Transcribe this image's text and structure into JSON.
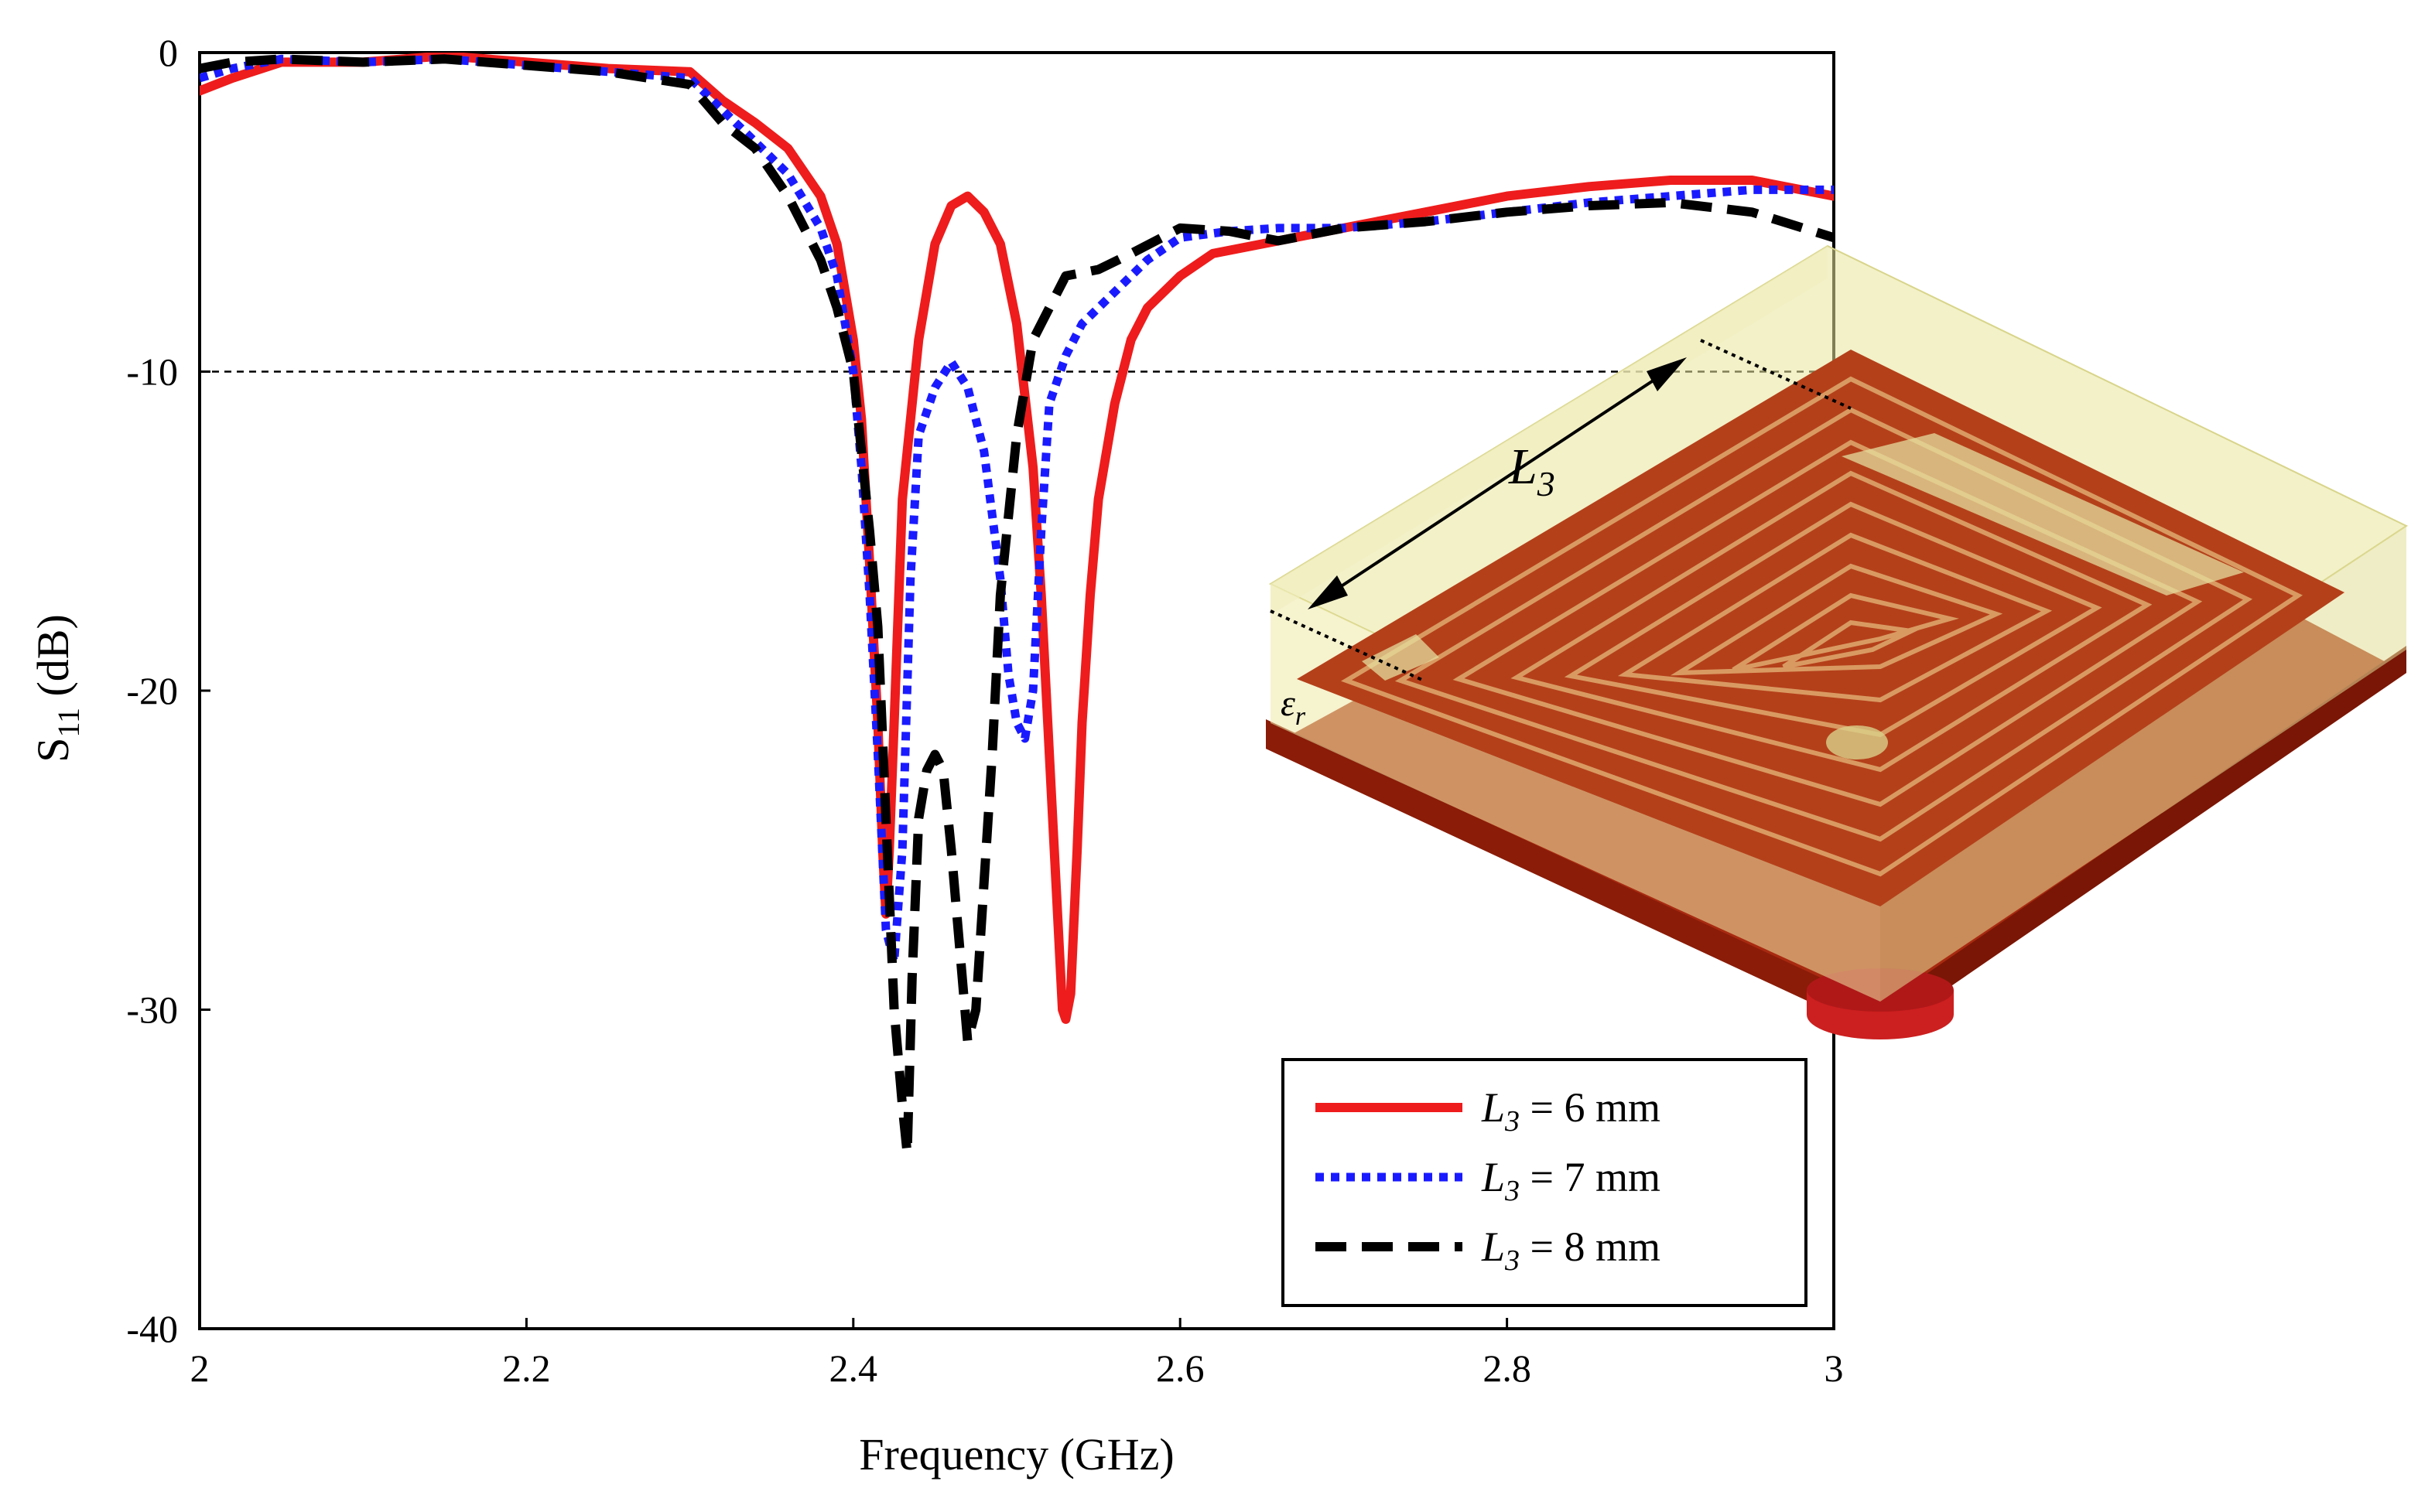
{
  "chart_data": {
    "type": "line",
    "title": "",
    "xlabel": "Frequency (GHz)",
    "ylabel_main": "S",
    "ylabel_sub": "11",
    "ylabel_suffix": " (dB)",
    "xlim": [
      2,
      3
    ],
    "ylim": [
      -40,
      0
    ],
    "x_ticks": [
      {
        "value": 2,
        "label": "2"
      },
      {
        "value": 2.2,
        "label": "2.2"
      },
      {
        "value": 2.4,
        "label": "2.4"
      },
      {
        "value": 2.6,
        "label": "2.6"
      },
      {
        "value": 2.8,
        "label": "2.8"
      },
      {
        "value": 3,
        "label": "3"
      }
    ],
    "y_ticks": [
      {
        "value": 0,
        "label": "0"
      },
      {
        "value": -10,
        "label": "-10"
      },
      {
        "value": -20,
        "label": "-20"
      },
      {
        "value": -30,
        "label": "-30"
      },
      {
        "value": -40,
        "label": "-40"
      }
    ],
    "reference_line": {
      "y": -10,
      "style": "dashed"
    },
    "legend_position": "bottom-right",
    "series": [
      {
        "name": "L3 = 6 mm",
        "legend_var": "L",
        "legend_sub": "3",
        "legend_rest": " = 6 mm",
        "color": "#ee1c1c",
        "style": "solid",
        "x": [
          2.0,
          2.02,
          2.05,
          2.1,
          2.15,
          2.2,
          2.25,
          2.3,
          2.32,
          2.34,
          2.36,
          2.38,
          2.39,
          2.4,
          2.405,
          2.41,
          2.415,
          2.418,
          2.42,
          2.422,
          2.425,
          2.43,
          2.44,
          2.45,
          2.46,
          2.47,
          2.48,
          2.49,
          2.5,
          2.51,
          2.515,
          2.52,
          2.525,
          2.528,
          2.53,
          2.533,
          2.537,
          2.54,
          2.545,
          2.55,
          2.56,
          2.57,
          2.58,
          2.6,
          2.62,
          2.65,
          2.7,
          2.75,
          2.8,
          2.85,
          2.9,
          2.95,
          3.0
        ],
        "y": [
          -1.2,
          -0.8,
          -0.3,
          -0.3,
          -0.1,
          -0.3,
          -0.5,
          -0.6,
          -1.5,
          -2.2,
          -3.0,
          -4.5,
          -6.0,
          -9.0,
          -11.5,
          -16.0,
          -21.0,
          -25.0,
          -27.0,
          -25.0,
          -21.0,
          -14.0,
          -9.0,
          -6.0,
          -4.8,
          -4.5,
          -5.0,
          -6.0,
          -8.5,
          -13.0,
          -17.0,
          -22.0,
          -27.0,
          -30.0,
          -30.3,
          -29.5,
          -25.0,
          -21.0,
          -17.0,
          -14.0,
          -11.0,
          -9.0,
          -8.0,
          -7.0,
          -6.3,
          -6.0,
          -5.5,
          -5.0,
          -4.5,
          -4.2,
          -4.0,
          -4.0,
          -4.5
        ]
      },
      {
        "name": "L3 = 7 mm",
        "legend_var": "L",
        "legend_sub": "3",
        "legend_rest": " = 7 mm",
        "color": "#1a1aff",
        "style": "dotted",
        "x": [
          2.0,
          2.02,
          2.05,
          2.1,
          2.15,
          2.2,
          2.25,
          2.3,
          2.32,
          2.34,
          2.36,
          2.38,
          2.39,
          2.4,
          2.405,
          2.41,
          2.415,
          2.42,
          2.425,
          2.43,
          2.435,
          2.44,
          2.45,
          2.46,
          2.47,
          2.48,
          2.49,
          2.495,
          2.5,
          2.505,
          2.51,
          2.515,
          2.52,
          2.53,
          2.54,
          2.56,
          2.58,
          2.6,
          2.63,
          2.66,
          2.7,
          2.75,
          2.8,
          2.85,
          2.9,
          2.95,
          3.0
        ],
        "y": [
          -0.8,
          -0.5,
          -0.2,
          -0.3,
          -0.2,
          -0.4,
          -0.6,
          -0.8,
          -1.8,
          -2.8,
          -3.8,
          -5.5,
          -7.0,
          -10.0,
          -13.0,
          -17.0,
          -22.0,
          -27.5,
          -28.5,
          -25.0,
          -16.5,
          -12.0,
          -10.5,
          -9.7,
          -10.5,
          -12.5,
          -16.5,
          -19.5,
          -21.0,
          -21.5,
          -20.0,
          -15.0,
          -11.0,
          -9.5,
          -8.5,
          -7.5,
          -6.5,
          -5.8,
          -5.6,
          -5.5,
          -5.5,
          -5.3,
          -5.0,
          -4.7,
          -4.5,
          -4.3,
          -4.3
        ]
      },
      {
        "name": "L3 = 8 mm",
        "legend_var": "L",
        "legend_sub": "3",
        "legend_rest": " = 8 mm",
        "color": "#000000",
        "style": "dashed",
        "x": [
          2.0,
          2.02,
          2.05,
          2.1,
          2.15,
          2.2,
          2.25,
          2.3,
          2.32,
          2.34,
          2.36,
          2.38,
          2.39,
          2.4,
          2.405,
          2.41,
          2.415,
          2.42,
          2.425,
          2.43,
          2.433,
          2.436,
          2.44,
          2.445,
          2.45,
          2.455,
          2.46,
          2.465,
          2.47,
          2.475,
          2.48,
          2.485,
          2.49,
          2.5,
          2.51,
          2.52,
          2.53,
          2.55,
          2.57,
          2.6,
          2.63,
          2.66,
          2.7,
          2.75,
          2.8,
          2.85,
          2.9,
          2.95,
          3.0
        ],
        "y": [
          -0.5,
          -0.3,
          -0.2,
          -0.3,
          -0.2,
          -0.4,
          -0.6,
          -1.0,
          -2.2,
          -3.0,
          -4.5,
          -6.5,
          -8.0,
          -10.0,
          -12.5,
          -15.0,
          -18.0,
          -24.0,
          -30.0,
          -33.0,
          -34.5,
          -29.0,
          -24.0,
          -22.5,
          -22.0,
          -22.5,
          -25.0,
          -28.0,
          -31.0,
          -30.0,
          -26.0,
          -22.0,
          -17.0,
          -12.0,
          -9.0,
          -8.0,
          -7.0,
          -6.8,
          -6.3,
          -5.5,
          -5.6,
          -5.9,
          -5.5,
          -5.3,
          -5.0,
          -4.8,
          -4.7,
          -5.0,
          -5.8
        ]
      }
    ]
  },
  "inset": {
    "caption": "3D antenna model: spiral radiator on dielectric substrate",
    "dimension_var": "L",
    "dimension_sub": "3",
    "substrate_symbol": "ε",
    "substrate_sub": "r"
  }
}
